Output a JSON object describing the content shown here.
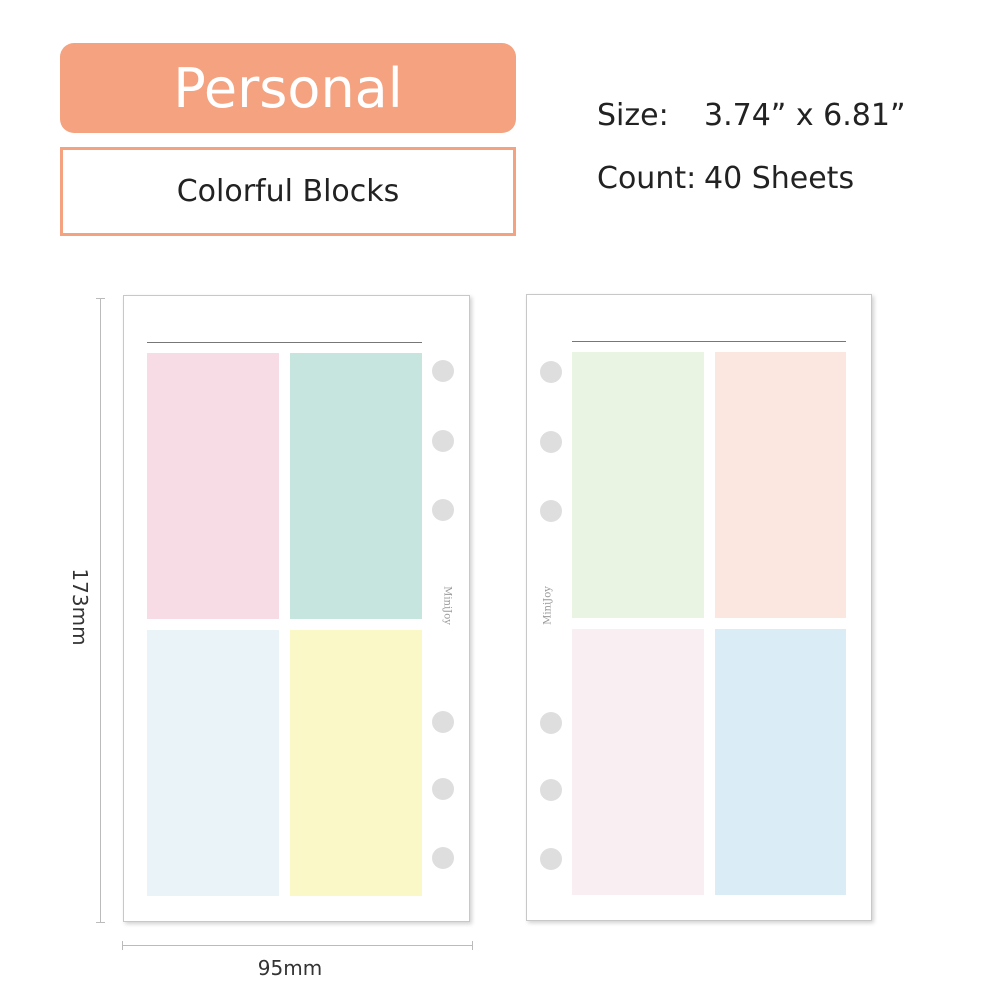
{
  "title": "Personal",
  "subtitle": "Colorful Blocks",
  "specs": {
    "size_label": "Size:",
    "size_value": "3.74” x 6.81”",
    "count_label": "Count:",
    "count_value": "40 Sheets"
  },
  "brand": "MiniJoy",
  "dimensions": {
    "height": "173mm",
    "width": "95mm"
  },
  "colors": {
    "accent": "#f4a27f",
    "left_blocks": [
      "#f7dce5",
      "#c5e5de",
      "#eaf3f7",
      "#faf8c7"
    ],
    "right_blocks": [
      "#eaf4e2",
      "#fbe6e0",
      "#f9eef2",
      "#daecf6"
    ]
  }
}
